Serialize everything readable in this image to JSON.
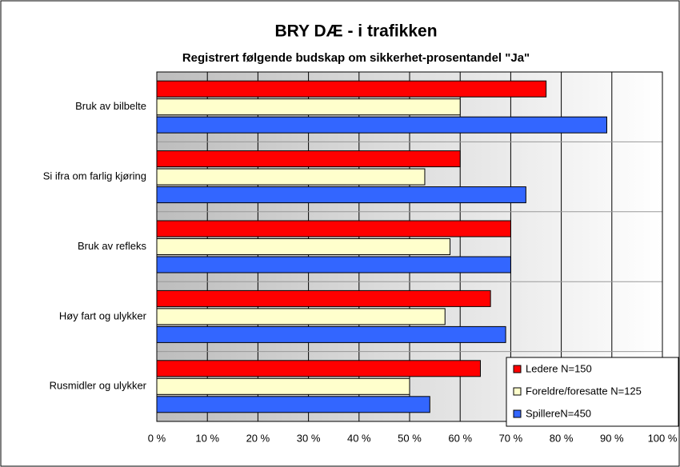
{
  "chart_data": {
    "type": "hbar",
    "title": "BRY DÆ - i trafikken",
    "subtitle": "Registrert følgende budskap om sikkerhet-prosentandel \"Ja\"",
    "categories": [
      "Bruk av bilbelte",
      "Si ifra om farlig kjøring",
      "Bruk av refleks",
      "Høy fart og ulykker",
      "Rusmidler og ulykker"
    ],
    "series": [
      {
        "name": "Ledere N=150",
        "color": "#ff0000",
        "values": [
          77,
          60,
          70,
          66,
          64
        ]
      },
      {
        "name": "Foreldre/foresatte N=125",
        "color": "#ffffcc",
        "values": [
          60,
          53,
          58,
          57,
          50
        ]
      },
      {
        "name": "SpillereN=450",
        "color": "#3366ff",
        "values": [
          89,
          73,
          70,
          69,
          54
        ]
      }
    ],
    "xlim": [
      0,
      100
    ],
    "xticks": [
      {
        "value": 0,
        "label": "0 %"
      },
      {
        "value": 10,
        "label": "10 %"
      },
      {
        "value": 20,
        "label": "20 %"
      },
      {
        "value": 30,
        "label": "30 %"
      },
      {
        "value": 40,
        "label": "40 %"
      },
      {
        "value": 50,
        "label": "50 %"
      },
      {
        "value": 60,
        "label": "60 %"
      },
      {
        "value": 70,
        "label": "70 %"
      },
      {
        "value": 80,
        "label": "80 %"
      },
      {
        "value": 90,
        "label": "90 %"
      },
      {
        "value": 100,
        "label": "100 %"
      }
    ],
    "grid": true,
    "legend": "lower right"
  }
}
